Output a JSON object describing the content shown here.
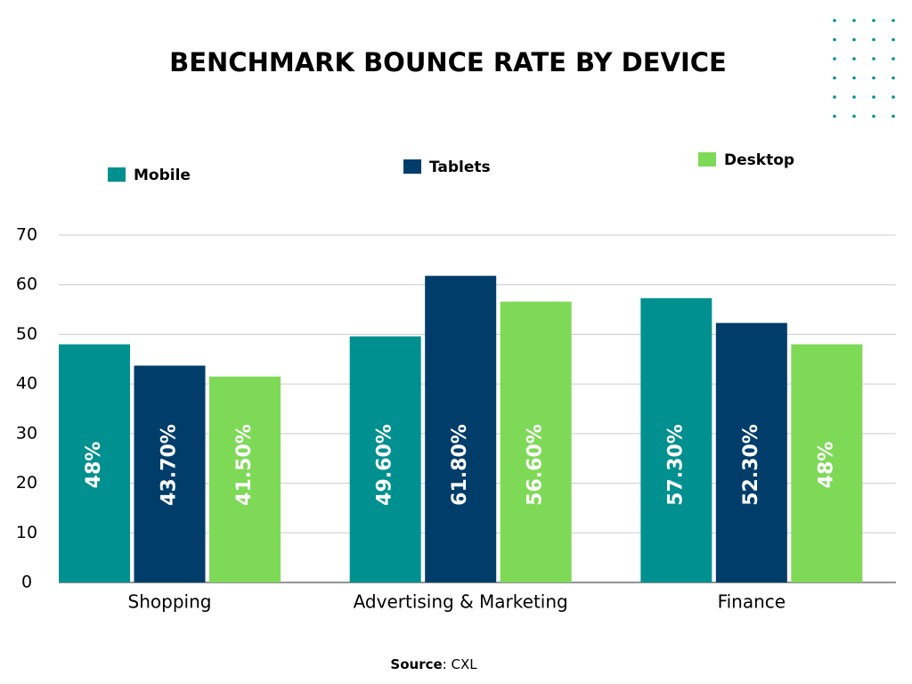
{
  "chart_data": {
    "type": "bar",
    "title": "BENCHMARK BOUNCE RATE BY DEVICE",
    "categories": [
      "Shopping",
      "Advertising & Marketing",
      "Finance"
    ],
    "series": [
      {
        "name": "Mobile",
        "color": "#00908f",
        "values": [
          48,
          49.6,
          57.3
        ],
        "value_labels": [
          "48%",
          "49.60%",
          "57.30%"
        ]
      },
      {
        "name": "Tablets",
        "color": "#003d6b",
        "values": [
          43.7,
          61.8,
          52.3
        ],
        "value_labels": [
          "43.70%",
          "61.80%",
          "52.30%"
        ]
      },
      {
        "name": "Desktop",
        "color": "#7ed957",
        "values": [
          41.5,
          56.6,
          48
        ],
        "value_labels": [
          "41.50%",
          "56.60%",
          "48%"
        ]
      }
    ],
    "ylim": [
      0,
      70
    ],
    "yticks": [
      0,
      10,
      20,
      30,
      40,
      50,
      60,
      70
    ],
    "grid": true,
    "source_label": "Source",
    "source": ": CXL"
  }
}
